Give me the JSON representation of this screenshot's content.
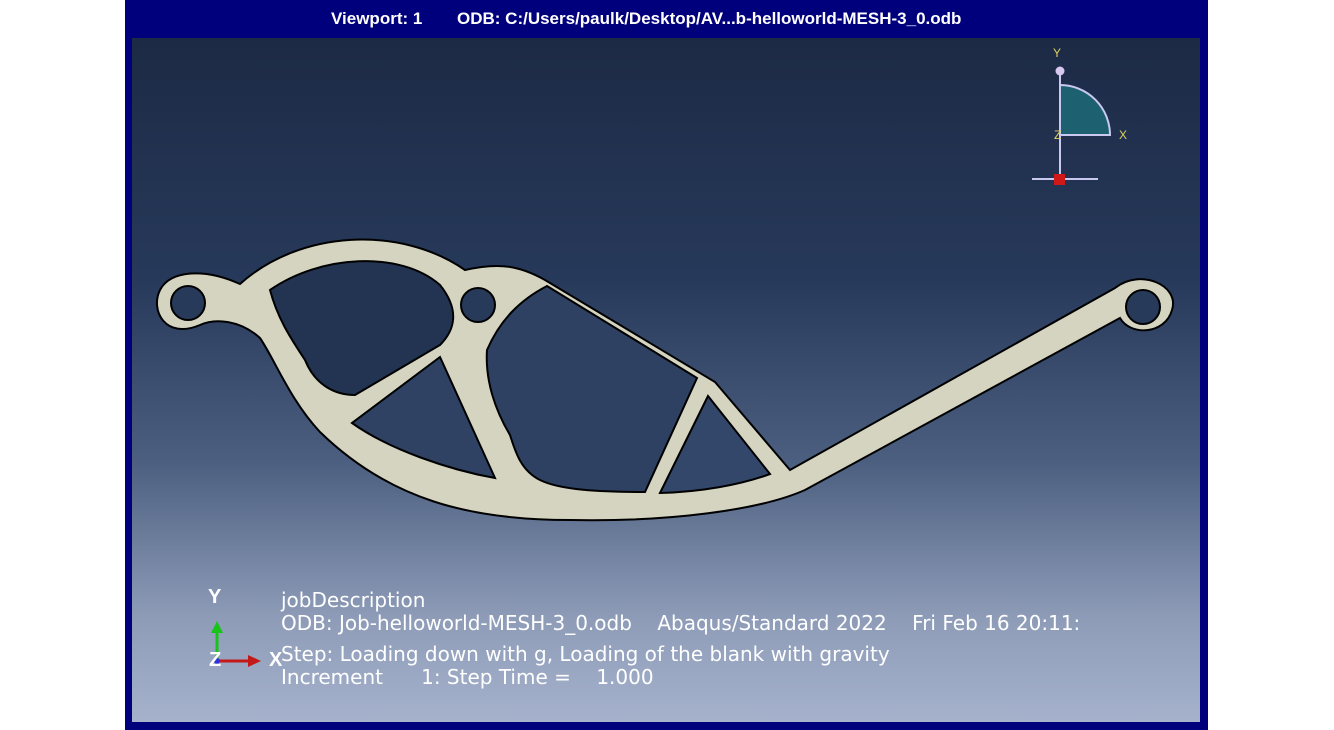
{
  "window": {
    "viewport_label": "Viewport: 1",
    "odb_path": "ODB: C:/Users/paulk/Desktop/AV...b-helloworld-MESH-3_0.odb"
  },
  "view_cube": {
    "y_label": "Y",
    "x_label": "X",
    "z_label": "Z"
  },
  "triad": {
    "y_label": "Y",
    "z_label": "Z",
    "x_label": "X",
    "colors": {
      "y_arrow": "#19c419",
      "x_arrow": "#c41919",
      "z_dot": "#3030e0"
    }
  },
  "info_block": {
    "job_description": "jobDescription",
    "odb_line": "ODB: Job-helloworld-MESH-3_0.odb    Abaqus/Standard 2022    Fri Feb 16 20:11:",
    "step_line": "Step: Loading down with g, Loading of the blank with gravity",
    "increment_line": "Increment      1: Step Time =    1.000"
  },
  "colors": {
    "frame": "#00007d",
    "part_fill": "#d4d4c0",
    "part_edge": "#000000",
    "view_cube_fill": "#1d6070",
    "view_cube_edge": "#c8c8f0",
    "view_cube_origin": "#d01818"
  }
}
